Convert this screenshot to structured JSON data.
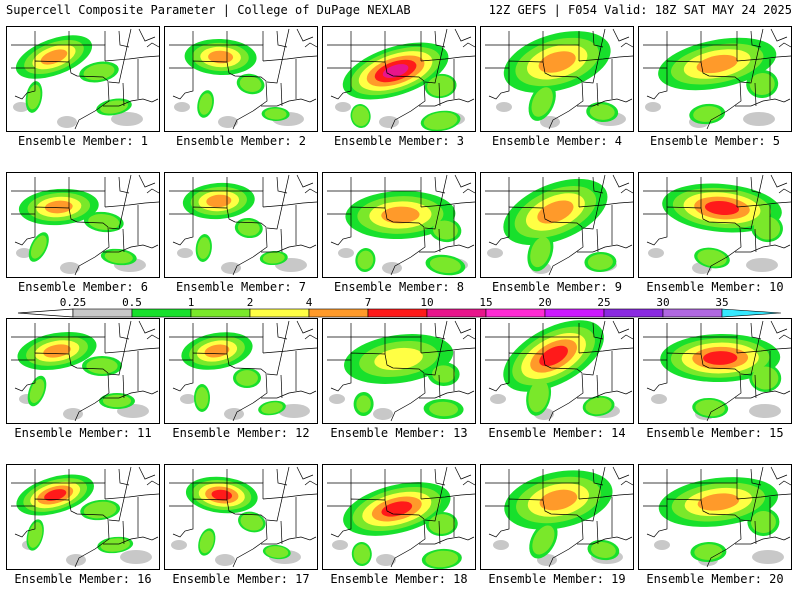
{
  "header": {
    "left": "Supercell Composite Parameter | College of DuPage NEXLAB",
    "right": "12Z GEFS | F054 Valid: 18Z SAT MAY 24 2025"
  },
  "legend": {
    "labels": [
      "0.25",
      "0.5",
      "1",
      "2",
      "4",
      "7",
      "10",
      "15",
      "20",
      "25",
      "30",
      "35"
    ],
    "colors": [
      "#c8c8c8",
      "#18e02c",
      "#7ae82a",
      "#ffff44",
      "#ff9a2a",
      "#ff1a1a",
      "#e8158c",
      "#ff2ad4",
      "#cc1aff",
      "#8a2ae0",
      "#b068e0",
      "#36e8ff"
    ]
  },
  "panels": [
    {
      "caption": "Ensemble Member: 1",
      "max_level": 4
    },
    {
      "caption": "Ensemble Member: 2",
      "max_level": 4
    },
    {
      "caption": "Ensemble Member: 3",
      "max_level": 6
    },
    {
      "caption": "Ensemble Member: 4",
      "max_level": 4
    },
    {
      "caption": "Ensemble Member: 5",
      "max_level": 4
    },
    {
      "caption": "Ensemble Member: 6",
      "max_level": 4
    },
    {
      "caption": "Ensemble Member: 7",
      "max_level": 4
    },
    {
      "caption": "Ensemble Member: 8",
      "max_level": 4
    },
    {
      "caption": "Ensemble Member: 9",
      "max_level": 4
    },
    {
      "caption": "Ensemble Member: 10",
      "max_level": 5
    },
    {
      "caption": "Ensemble Member: 11",
      "max_level": 4
    },
    {
      "caption": "Ensemble Member: 12",
      "max_level": 4
    },
    {
      "caption": "Ensemble Member: 13",
      "max_level": 3
    },
    {
      "caption": "Ensemble Member: 14",
      "max_level": 5
    },
    {
      "caption": "Ensemble Member: 15",
      "max_level": 5
    },
    {
      "caption": "Ensemble Member: 16",
      "max_level": 5
    },
    {
      "caption": "Ensemble Member: 17",
      "max_level": 5
    },
    {
      "caption": "Ensemble Member: 18",
      "max_level": 5
    },
    {
      "caption": "Ensemble Member: 19",
      "max_level": 4
    },
    {
      "caption": "Ensemble Member: 20",
      "max_level": 4
    }
  ]
}
